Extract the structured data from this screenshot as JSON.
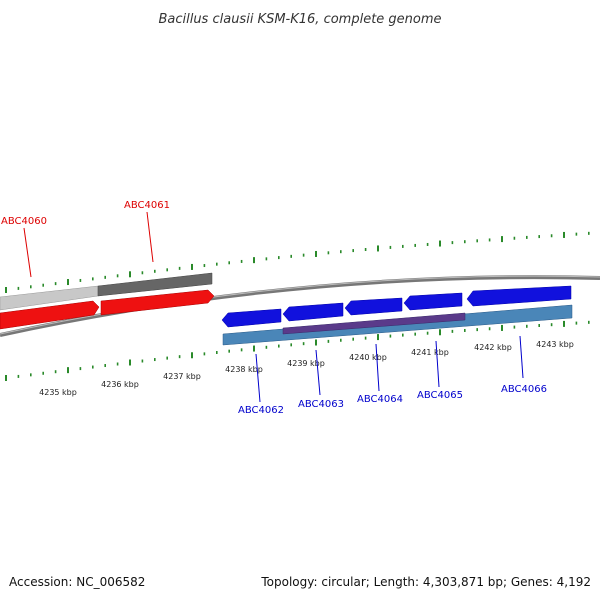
{
  "title": "Bacillus clausii KSM-K16, complete genome",
  "footer": {
    "accession": "Accession: NC_006582",
    "summary": "Topology: circular; Length: 4,303,871 bp; Genes: 4,192"
  },
  "scale_labels": [
    "4235 kbp",
    "4236 kbp",
    "4237 kbp",
    "4238 kbp",
    "4239 kbp",
    "4240 kbp",
    "4241 kbp",
    "4242 kbp",
    "4243 kbp"
  ],
  "genes_forward": [
    {
      "label": "ABC4060",
      "color": "#dd0000"
    },
    {
      "label": "ABC4061",
      "color": "#dd0000"
    }
  ],
  "genes_reverse": [
    {
      "label": "ABC4062",
      "color": "#0000cc"
    },
    {
      "label": "ABC4063",
      "color": "#0000cc"
    },
    {
      "label": "ABC4064",
      "color": "#0000cc"
    },
    {
      "label": "ABC4065",
      "color": "#0000cc"
    },
    {
      "label": "ABC4066",
      "color": "#0000cc"
    }
  ],
  "colors": {
    "forward_gene": "#ee1111",
    "reverse_gene": "#1111dd",
    "forward_track_light": "#c8c8c8",
    "forward_track_dark": "#666666",
    "reverse_track": "#4a86b8",
    "reverse_track_overlap": "#5a3a8a",
    "tick": "#2a8a2a",
    "backbone": "#888888"
  }
}
